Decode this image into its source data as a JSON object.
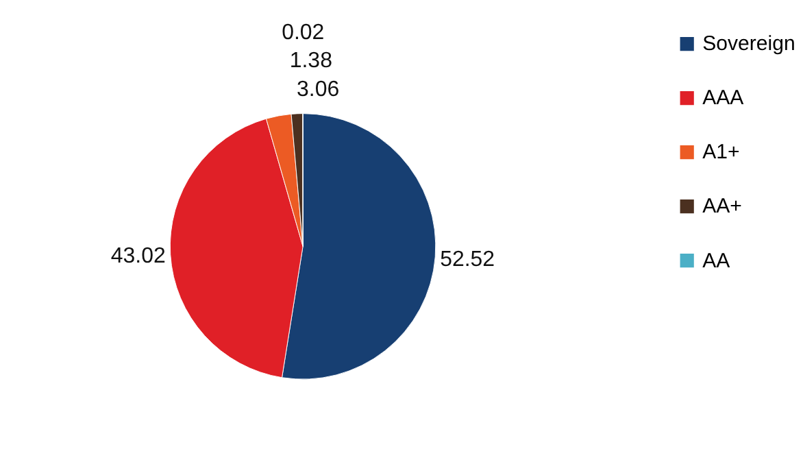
{
  "chart_data": {
    "type": "pie",
    "categories": [
      "Sovereign",
      "AAA",
      "A1+",
      "AA+",
      "AA"
    ],
    "values": [
      52.52,
      43.02,
      3.06,
      1.38,
      0.02
    ],
    "colors": [
      "#173f72",
      "#e02027",
      "#ec5b24",
      "#4b3020",
      "#4bafc6"
    ],
    "data_labels": true,
    "legend": "right"
  }
}
